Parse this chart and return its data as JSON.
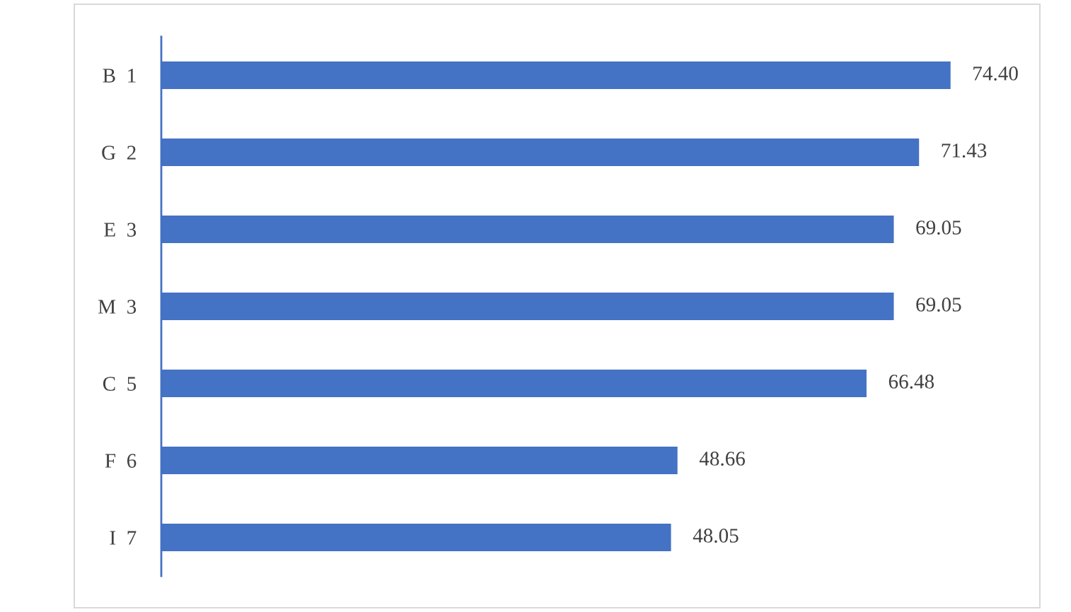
{
  "chart_data": {
    "type": "bar",
    "orientation": "horizontal",
    "categories": [
      "B  1",
      "G  2",
      "E  3",
      "M  3",
      "C  5",
      "F  6",
      "I  7"
    ],
    "values": [
      74.4,
      71.43,
      69.05,
      69.05,
      66.48,
      48.66,
      48.05
    ],
    "value_labels": [
      "74.40",
      "71.43",
      "69.05",
      "69.05",
      "66.48",
      "48.66",
      "48.05"
    ],
    "color": "#4472c4",
    "tick_labels": "y",
    "grid": false,
    "legend": false
  }
}
